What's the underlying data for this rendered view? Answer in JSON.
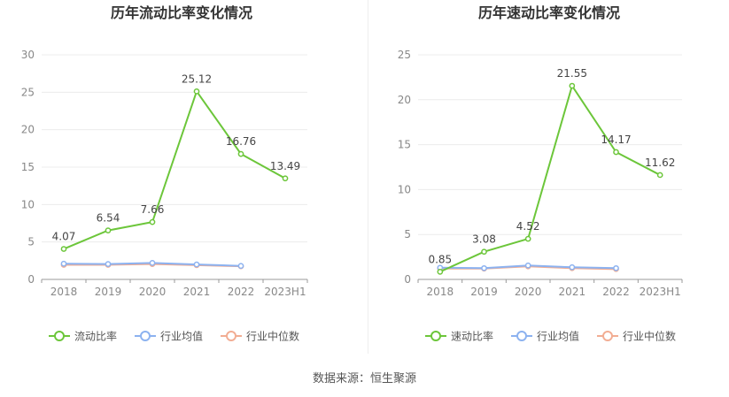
{
  "source": "数据来源：恒生聚源",
  "chart_data": [
    {
      "type": "line",
      "title": "历年流动比率变化情况",
      "categories": [
        "2018",
        "2019",
        "2020",
        "2021",
        "2022",
        "2023H1"
      ],
      "ylim": [
        0,
        30
      ],
      "yticks": [
        "0",
        "5",
        "10",
        "15",
        "20",
        "25",
        "30"
      ],
      "grid": true,
      "legend": "bottom",
      "series": [
        {
          "name": "流动比率",
          "color": "#6cc63a",
          "values": [
            4.07,
            6.54,
            7.66,
            25.12,
            16.76,
            13.49
          ],
          "labels": [
            "4.07",
            "6.54",
            "7.66",
            "25.12",
            "16.76",
            "13.49"
          ]
        },
        {
          "name": "行业均值",
          "color": "#8cb2f0",
          "values": [
            2.1,
            2.05,
            2.2,
            2.0,
            1.8,
            null
          ]
        },
        {
          "name": "行业中位数",
          "color": "#f2ad93",
          "values": [
            1.95,
            1.95,
            2.05,
            1.9,
            1.75,
            null
          ]
        }
      ]
    },
    {
      "type": "line",
      "title": "历年速动比率变化情况",
      "categories": [
        "2018",
        "2019",
        "2020",
        "2021",
        "2022",
        "2023H1"
      ],
      "ylim": [
        0,
        25
      ],
      "yticks": [
        "0",
        "5",
        "10",
        "15",
        "20",
        "25"
      ],
      "grid": true,
      "legend": "bottom",
      "series": [
        {
          "name": "速动比率",
          "color": "#6cc63a",
          "values": [
            0.85,
            3.08,
            4.52,
            21.55,
            14.17,
            11.62
          ],
          "labels": [
            "0.85",
            "3.08",
            "4.52",
            "21.55",
            "14.17",
            "11.62"
          ]
        },
        {
          "name": "行业均值",
          "color": "#8cb2f0",
          "values": [
            1.3,
            1.25,
            1.55,
            1.35,
            1.25,
            null
          ]
        },
        {
          "name": "行业中位数",
          "color": "#f2ad93",
          "values": [
            1.2,
            1.2,
            1.45,
            1.25,
            1.15,
            null
          ]
        }
      ]
    }
  ]
}
